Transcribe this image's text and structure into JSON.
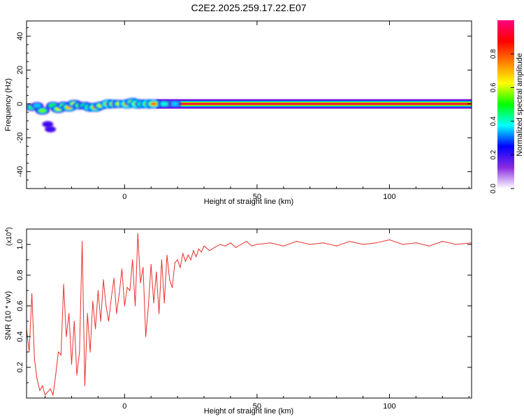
{
  "figure": {
    "title": "C2E2.2025.259.17.22.E07"
  },
  "chart_data": [
    {
      "type": "heatmap",
      "xlabel": "Height of straight line (km)",
      "ylabel": "Frequency (Hz)",
      "xlim": [
        -37,
        131
      ],
      "ylim": [
        -50,
        49
      ],
      "xticks": [
        0,
        50,
        100
      ],
      "yticks": [
        -40,
        -20,
        0,
        20,
        40
      ],
      "colorbar": {
        "label": "Normalized spectral amplitude",
        "range": [
          0,
          1
        ],
        "ticks": [
          "0.0",
          "0.2",
          "0.4",
          "0.6",
          "0.8"
        ],
        "colors": [
          "#ffffff",
          "#8a2be2",
          "#0000ff",
          "#00ffff",
          "#00ff00",
          "#ffff00",
          "#ff8000",
          "#ff0000",
          "#ff0080"
        ]
      },
      "main_band": {
        "x_start": 12,
        "x_end": 131,
        "frequency_hz": 0,
        "amplitude": 1.0
      },
      "blobs": [
        {
          "x": -35,
          "f": -2,
          "amp": 0.45
        },
        {
          "x": -33,
          "f": -1,
          "amp": 0.35
        },
        {
          "x": -31,
          "f": -4,
          "amp": 0.55
        },
        {
          "x": -29,
          "f": -12,
          "amp": 0.2
        },
        {
          "x": -28,
          "f": -15,
          "amp": 0.2
        },
        {
          "x": -27,
          "f": -1,
          "amp": 0.5
        },
        {
          "x": -25,
          "f": -3,
          "amp": 0.6
        },
        {
          "x": -23,
          "f": -1,
          "amp": 0.55
        },
        {
          "x": -21,
          "f": -2,
          "amp": 0.7
        },
        {
          "x": -19,
          "f": 0,
          "amp": 0.6
        },
        {
          "x": -17,
          "f": -1,
          "amp": 0.55
        },
        {
          "x": -15,
          "f": -1,
          "amp": 0.5
        },
        {
          "x": -13,
          "f": -2,
          "amp": 0.75
        },
        {
          "x": -11,
          "f": -2,
          "amp": 0.8
        },
        {
          "x": -9,
          "f": -1,
          "amp": 0.6
        },
        {
          "x": -6,
          "f": 0,
          "amp": 0.85
        },
        {
          "x": -4,
          "f": 0,
          "amp": 0.7
        },
        {
          "x": -2,
          "f": 0,
          "amp": 0.6
        },
        {
          "x": 1,
          "f": 0,
          "amp": 0.85
        },
        {
          "x": 3,
          "f": 1,
          "amp": 0.7
        },
        {
          "x": 5,
          "f": 0,
          "amp": 0.9
        },
        {
          "x": 7,
          "f": 0,
          "amp": 0.75
        },
        {
          "x": 9,
          "f": 0,
          "amp": 0.85
        },
        {
          "x": 11,
          "f": 0,
          "amp": 0.8
        },
        {
          "x": 15,
          "f": 0,
          "amp": 0.4
        },
        {
          "x": 19,
          "f": 0,
          "amp": 0.35
        }
      ]
    },
    {
      "type": "line",
      "xlabel": "Height of straight line (km)",
      "ylabel": "SNR (10 * v/v)",
      "y_multiplier": "(x10",
      "y_multiplier_exp": "4",
      "y_multiplier_close": ")",
      "xlim": [
        -37,
        131
      ],
      "ylim": [
        0,
        1.1
      ],
      "xticks": [
        0,
        50,
        100
      ],
      "yticks": [
        "0.2",
        "0.4",
        "0.6",
        "0.8",
        "1.0"
      ],
      "color": "#e8302a",
      "series": {
        "x": [
          -37,
          -36,
          -35,
          -34,
          -33,
          -32,
          -31,
          -30,
          -29,
          -28,
          -27,
          -26,
          -25,
          -24,
          -23,
          -22,
          -21,
          -20,
          -19,
          -18,
          -17,
          -16,
          -15,
          -14,
          -13,
          -12,
          -11,
          -10,
          -9,
          -8,
          -7,
          -6,
          -5,
          -4,
          -3,
          -2,
          -1,
          0,
          1,
          2,
          3,
          4,
          5,
          6,
          7,
          8,
          9,
          10,
          11,
          12,
          13,
          14,
          15,
          16,
          17,
          18,
          19,
          20,
          21,
          22,
          23,
          24,
          25,
          26,
          27,
          28,
          29,
          30,
          32,
          34,
          36,
          38,
          40,
          42,
          44,
          46,
          48,
          50,
          55,
          60,
          65,
          70,
          75,
          80,
          85,
          90,
          95,
          100,
          105,
          110,
          115,
          120,
          125,
          131
        ],
        "y": [
          0.45,
          0.3,
          0.68,
          0.25,
          0.12,
          0.05,
          0.08,
          0.02,
          0.04,
          0.06,
          0.02,
          0.15,
          0.3,
          0.28,
          0.74,
          0.4,
          0.55,
          0.22,
          0.5,
          0.15,
          0.3,
          1.02,
          0.08,
          0.55,
          0.3,
          0.63,
          0.45,
          0.7,
          0.5,
          0.77,
          0.6,
          0.5,
          0.65,
          0.78,
          0.55,
          0.68,
          0.84,
          0.6,
          0.72,
          0.7,
          0.9,
          0.6,
          1.07,
          0.75,
          0.85,
          0.4,
          0.6,
          0.87,
          0.62,
          0.82,
          0.55,
          0.9,
          0.62,
          0.93,
          0.77,
          0.72,
          0.88,
          0.9,
          0.85,
          0.94,
          0.89,
          0.93,
          0.9,
          0.96,
          0.92,
          0.97,
          0.95,
          0.99,
          0.96,
          0.98,
          1.0,
          0.99,
          1.01,
          0.98,
          1.0,
          1.02,
          0.99,
          1.0,
          1.01,
          0.99,
          1.02,
          1.0,
          1.01,
          0.99,
          1.02,
          1.0,
          1.01,
          1.03,
          1.0,
          1.01,
          0.99,
          1.02,
          1.0,
          1.01
        ]
      }
    }
  ]
}
